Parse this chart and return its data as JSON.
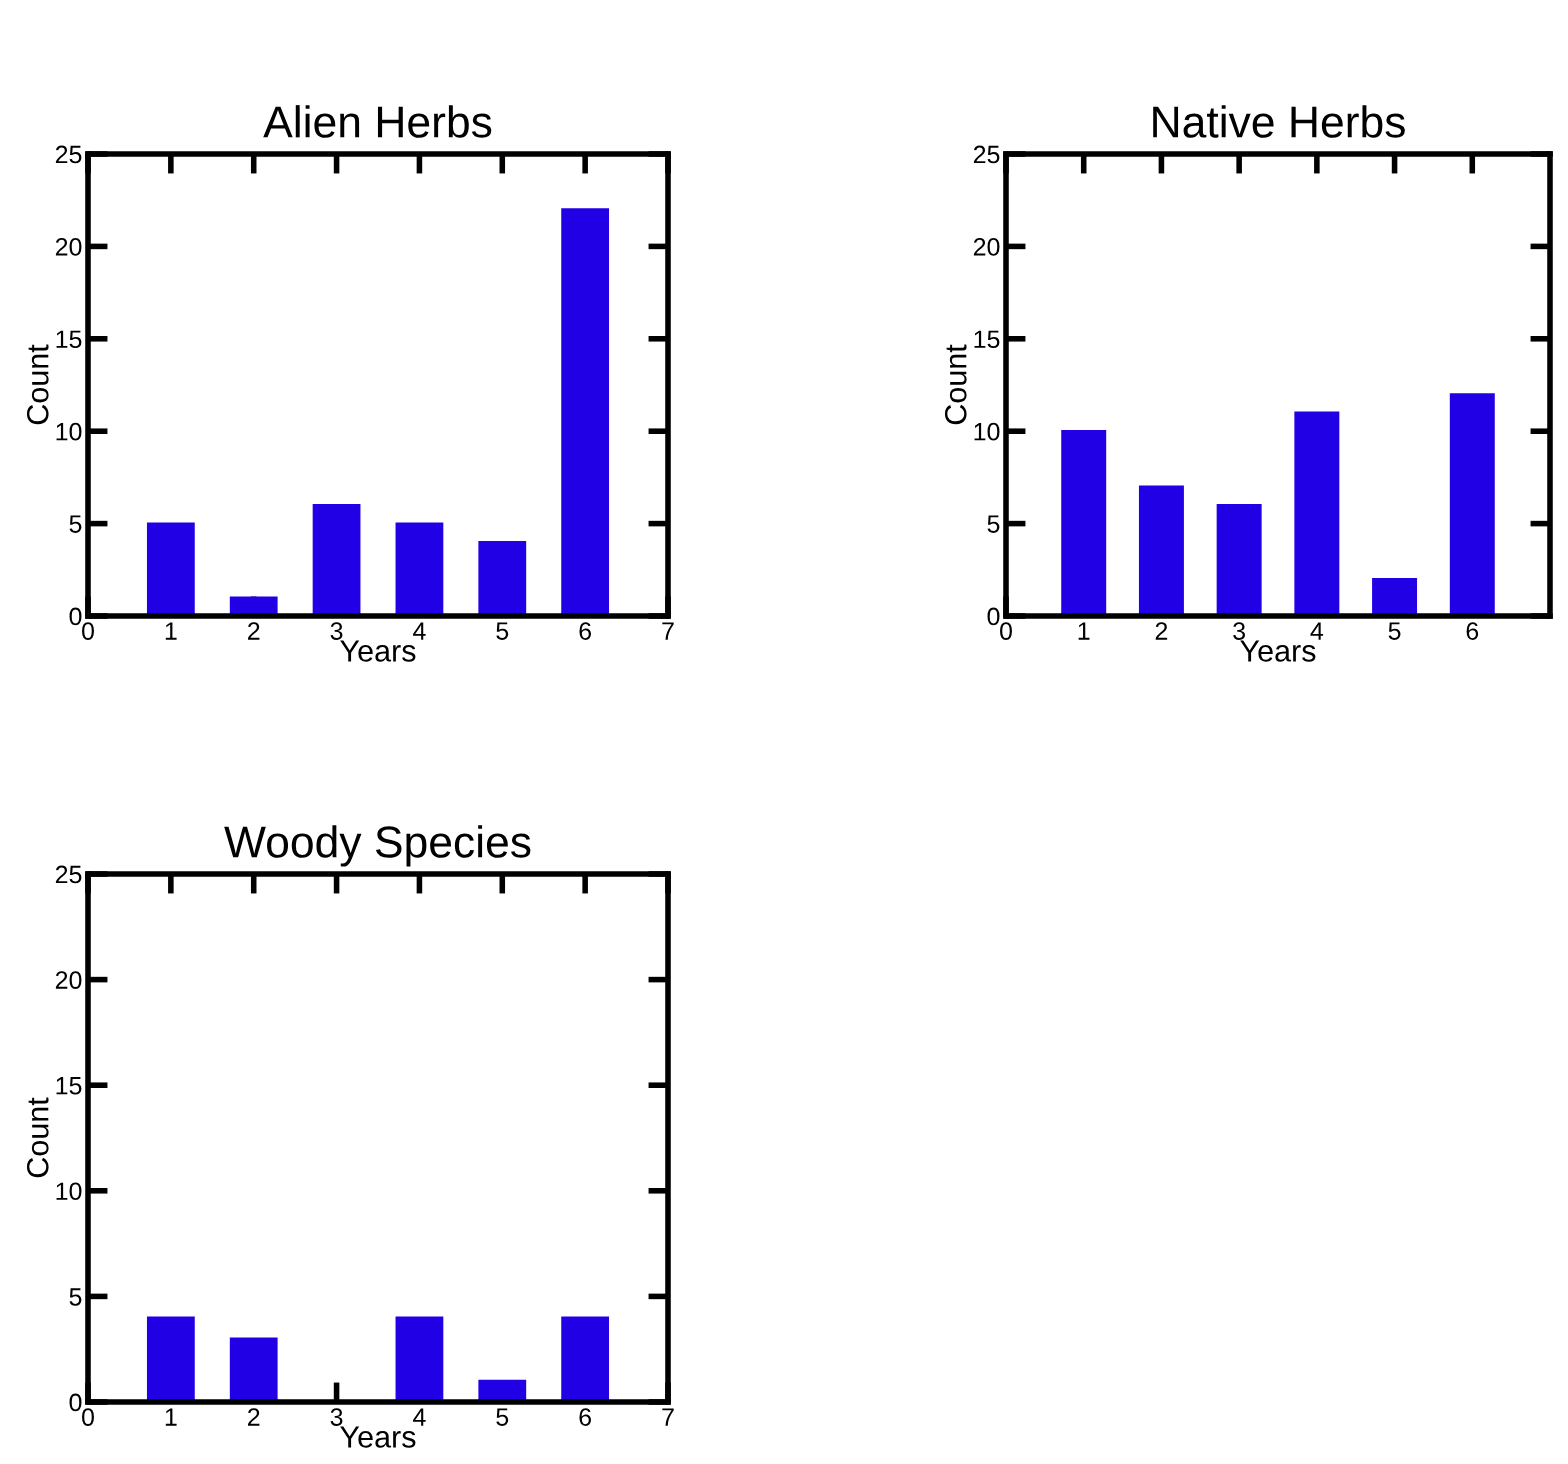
{
  "chart_data": [
    {
      "type": "bar",
      "title": "Alien Herbs",
      "xlabel": "Years",
      "ylabel": "Count",
      "x": [
        1,
        2,
        3,
        4,
        5,
        6
      ],
      "values": [
        5,
        1,
        6,
        5,
        4,
        22
      ],
      "color": "#2200e6",
      "xlim": [
        0,
        7
      ],
      "xticks": [
        0,
        1,
        2,
        3,
        4,
        5,
        6,
        7
      ],
      "ylim": [
        0,
        25
      ],
      "yticks": [
        0,
        5,
        10,
        15,
        20,
        25
      ],
      "grid": false,
      "legend": false
    },
    {
      "type": "bar",
      "title": "Native Herbs",
      "xlabel": "Years",
      "ylabel": "Count",
      "x": [
        1,
        2,
        3,
        4,
        5,
        6
      ],
      "values": [
        10,
        7,
        6,
        11,
        2,
        12
      ],
      "color": "#2200e6",
      "xlim": [
        0,
        7
      ],
      "xticks": [
        0,
        1,
        2,
        3,
        4,
        5,
        6
      ],
      "ylim": [
        0,
        25
      ],
      "yticks": [
        0,
        5,
        10,
        15,
        20,
        25
      ],
      "grid": false,
      "legend": false
    },
    {
      "type": "bar",
      "title": "Woody Species",
      "xlabel": "Years",
      "ylabel": "Count",
      "x": [
        1,
        2,
        3,
        4,
        5,
        6
      ],
      "values": [
        4,
        3,
        0,
        4,
        1,
        4
      ],
      "color": "#2200e6",
      "xlim": [
        0,
        7
      ],
      "xticks": [
        0,
        1,
        2,
        3,
        4,
        5,
        6,
        7
      ],
      "ylim": [
        0,
        25
      ],
      "yticks": [
        0,
        5,
        10,
        15,
        20,
        25
      ],
      "grid": false,
      "legend": false
    }
  ]
}
